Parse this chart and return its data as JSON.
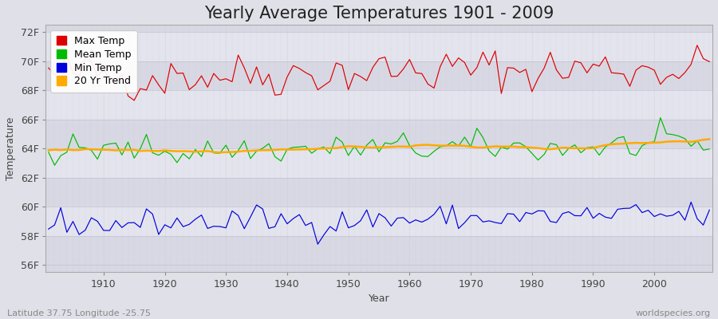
{
  "title": "Yearly Average Temperatures 1901 - 2009",
  "xlabel": "Year",
  "ylabel": "Temperature",
  "yticks": [
    56,
    58,
    60,
    62,
    64,
    66,
    68,
    70,
    72
  ],
  "ytick_labels": [
    "56F",
    "58F",
    "60F",
    "62F",
    "64F",
    "66F",
    "68F",
    "70F",
    "72F"
  ],
  "ylim": [
    55.5,
    72.5
  ],
  "xlim": [
    1900.5,
    2009.5
  ],
  "bg_color": "#e0e0e8",
  "band_colors": [
    "#d8d8e4",
    "#e4e4ee"
  ],
  "grid_color": "#ffffff",
  "line_colors": {
    "max": "#dd0000",
    "mean": "#00bb00",
    "min": "#0000dd",
    "trend": "#ffaa00"
  },
  "legend_labels": [
    "Max Temp",
    "Mean Temp",
    "Min Temp",
    "20 Yr Trend"
  ],
  "footer_left": "Latitude 37.75 Longitude -25.75",
  "footer_right": "worldspecies.org",
  "title_fontsize": 15,
  "axis_fontsize": 9,
  "legend_fontsize": 9,
  "xticks": [
    1910,
    1920,
    1930,
    1940,
    1950,
    1960,
    1970,
    1980,
    1990,
    2000
  ]
}
